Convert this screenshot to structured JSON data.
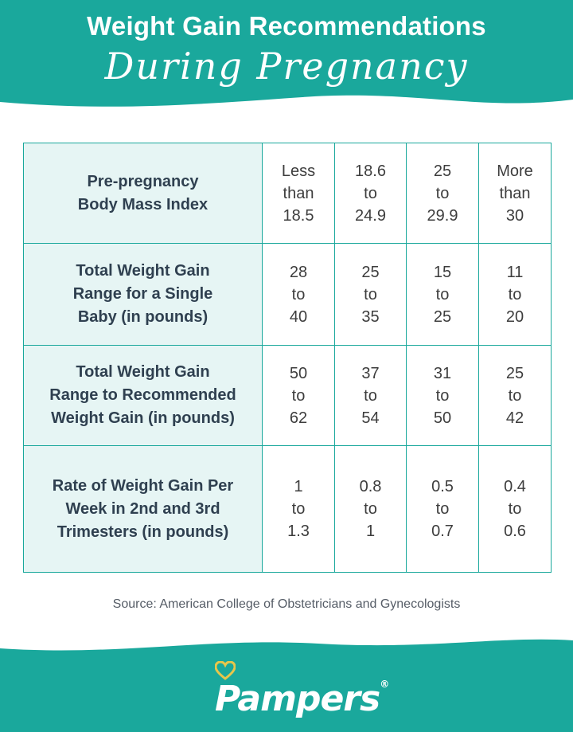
{
  "colors": {
    "teal": "#1aa89c",
    "label_bg": "#e6f5f4",
    "heart": "#e8c64a"
  },
  "header": {
    "title": "Weight Gain Recommendations",
    "subtitle": "During Pregnancy"
  },
  "table": {
    "rows": [
      {
        "label": [
          "Pre-pregnancy",
          "Body Mass Index"
        ],
        "cells": [
          [
            "Less",
            "than",
            "18.5"
          ],
          [
            "18.6",
            "to",
            "24.9"
          ],
          [
            "25",
            "to",
            "29.9"
          ],
          [
            "More",
            "than",
            "30"
          ]
        ]
      },
      {
        "label": [
          "Total Weight Gain",
          "Range for a Single",
          "Baby (in pounds)"
        ],
        "cells": [
          [
            "28",
            "to",
            "40"
          ],
          [
            "25",
            "to",
            "35"
          ],
          [
            "15",
            "to",
            "25"
          ],
          [
            "11",
            "to",
            "20"
          ]
        ]
      },
      {
        "label": [
          "Total Weight Gain",
          "Range to Recommended",
          "Weight Gain (in pounds)"
        ],
        "cells": [
          [
            "50",
            "to",
            "62"
          ],
          [
            "37",
            "to",
            "54"
          ],
          [
            "31",
            "to",
            "50"
          ],
          [
            "25",
            "to",
            "42"
          ]
        ]
      },
      {
        "label": [
          "Rate of Weight Gain Per",
          "Week in 2nd and 3rd",
          "Trimesters (in pounds)"
        ],
        "cells": [
          [
            "1",
            "to",
            "1.3"
          ],
          [
            "0.8",
            "to",
            "1"
          ],
          [
            "0.5",
            "to",
            "0.7"
          ],
          [
            "0.4",
            "to",
            "0.6"
          ]
        ]
      }
    ]
  },
  "source": "Source: American College of Obstetricians and Gynecologists",
  "footer": {
    "brand": "Pampers",
    "reg_mark": "®",
    "logo_icon": "heart-icon"
  }
}
